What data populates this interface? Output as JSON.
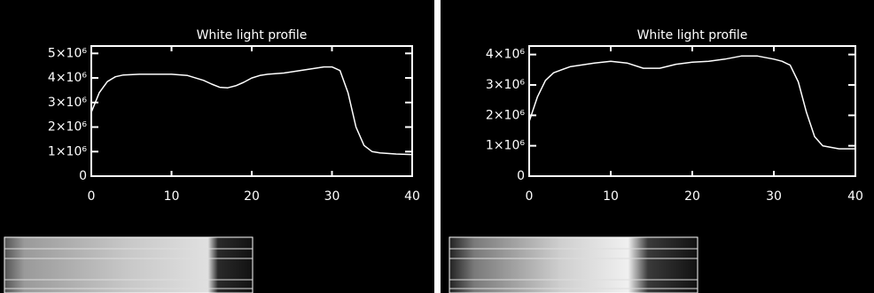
{
  "chart_data": [
    {
      "type": "line",
      "title": "White light profile",
      "color": "#ffffff",
      "x": [
        0,
        1,
        2,
        3,
        4,
        6,
        8,
        10,
        12,
        14,
        15,
        16,
        17,
        18,
        19,
        20,
        21,
        22,
        24,
        26,
        28,
        29,
        30,
        31,
        32,
        33,
        34,
        35,
        36,
        38,
        40
      ],
      "values": [
        2600000,
        3400000,
        3850000,
        4050000,
        4120000,
        4150000,
        4150000,
        4150000,
        4100000,
        3900000,
        3750000,
        3620000,
        3600000,
        3680000,
        3820000,
        4000000,
        4100000,
        4150000,
        4200000,
        4300000,
        4400000,
        4450000,
        4450000,
        4300000,
        3400000,
        2000000,
        1250000,
        1000000,
        950000,
        900000,
        880000
      ],
      "xlim": [
        0,
        40
      ],
      "xticks": [
        0,
        10,
        20,
        30,
        40
      ],
      "ylim": [
        0,
        5300000
      ],
      "yticks": [
        0,
        {
          "value": 1000000,
          "label": "1×10⁶"
        },
        {
          "value": 2000000,
          "label": "2×10⁶"
        },
        {
          "value": 3000000,
          "label": "3×10⁶"
        },
        {
          "value": 4000000,
          "label": "4×10⁶"
        },
        {
          "value": 5000000,
          "label": "5×10⁶"
        }
      ]
    },
    {
      "type": "line",
      "title": "White light profile",
      "color": "#ffffff",
      "x": [
        0,
        1,
        2,
        3,
        5,
        8,
        10,
        12,
        14,
        16,
        18,
        20,
        22,
        24,
        26,
        28,
        30,
        31,
        32,
        33,
        34,
        35,
        36,
        38,
        40
      ],
      "values": [
        1800000,
        2600000,
        3150000,
        3400000,
        3600000,
        3720000,
        3780000,
        3720000,
        3550000,
        3550000,
        3680000,
        3750000,
        3780000,
        3850000,
        3950000,
        3950000,
        3850000,
        3780000,
        3650000,
        3100000,
        2100000,
        1300000,
        1000000,
        900000,
        900000
      ],
      "xlim": [
        0,
        40
      ],
      "xticks": [
        0,
        10,
        20,
        30,
        40
      ],
      "ylim": [
        0,
        4280000
      ],
      "yticks": [
        0,
        {
          "value": 1000000,
          "label": "1×10⁶"
        },
        {
          "value": 2000000,
          "label": "2×10⁶"
        },
        {
          "value": 3000000,
          "label": "3×10⁶"
        },
        {
          "value": 4000000,
          "label": "4×10⁶"
        }
      ]
    }
  ]
}
